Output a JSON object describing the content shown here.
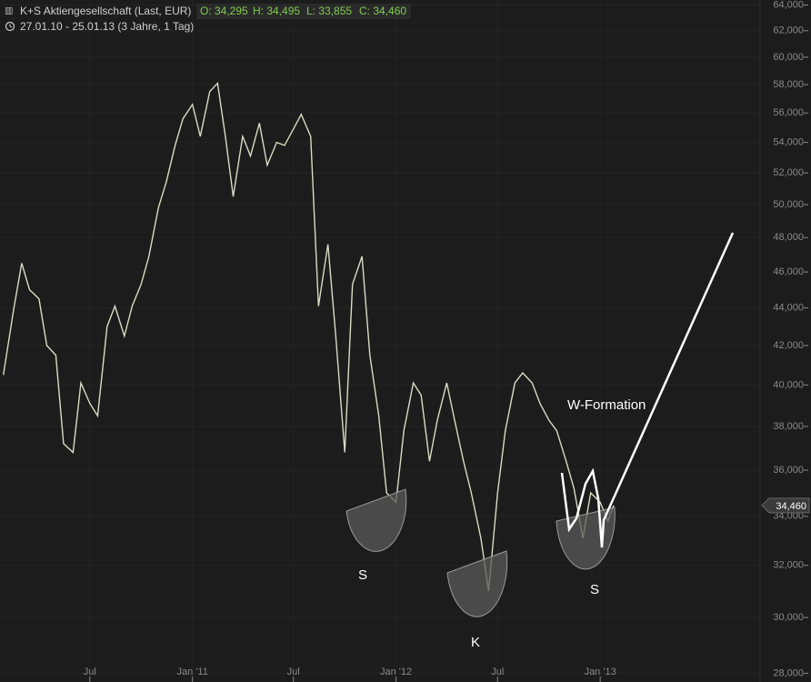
{
  "chart_data": {
    "type": "line",
    "title": "K+S Aktiengesellschaft (Last, EUR)",
    "ohlc": [
      "O: 34,295",
      "H: 34,495",
      "L: 33,855",
      "C: 34,460"
    ],
    "subtitle": "27.01.10 - 25.01.13 (3 Jahre, 1 Tag)",
    "annotations": [
      "W-Formation",
      "S",
      "K",
      "S"
    ],
    "last_price": {
      "value": 34460,
      "label": "34,460"
    },
    "color": "#d8dcc4",
    "log_scale": true,
    "grid": true,
    "xlim": [
      "2010-01-21",
      "2013-10-13"
    ],
    "ylim": [
      27700,
      64400
    ],
    "xticks": [
      {
        "value": "2010-07-01",
        "label": "Jul"
      },
      {
        "value": "2011-01-01",
        "label": "Jan '11"
      },
      {
        "value": "2011-07-01",
        "label": "Jul"
      },
      {
        "value": "2012-01-01",
        "label": "Jan '12"
      },
      {
        "value": "2012-07-01",
        "label": "Jul"
      },
      {
        "value": "2013-01-01",
        "label": "Jan '13"
      }
    ],
    "yticks": [
      {
        "value": 28000,
        "label": "28,000"
      },
      {
        "value": 30000,
        "label": "30,000"
      },
      {
        "value": 32000,
        "label": "32,000"
      },
      {
        "value": 34000,
        "label": "34,000"
      },
      {
        "value": 36000,
        "label": "36,000"
      },
      {
        "value": 38000,
        "label": "38,000"
      },
      {
        "value": 40000,
        "label": "40,000"
      },
      {
        "value": 42000,
        "label": "42,000"
      },
      {
        "value": 44000,
        "label": "44,000"
      },
      {
        "value": 46000,
        "label": "46,000"
      },
      {
        "value": 48000,
        "label": "48,000"
      },
      {
        "value": 50000,
        "label": "50,000"
      },
      {
        "value": 52000,
        "label": "52,000"
      },
      {
        "value": 54000,
        "label": "54,000"
      },
      {
        "value": 56000,
        "label": "56,000"
      },
      {
        "value": 58000,
        "label": "58,000"
      },
      {
        "value": 60000,
        "label": "60,000"
      },
      {
        "value": 62000,
        "label": "62,000"
      },
      {
        "value": 64000,
        "label": "64,000"
      }
    ],
    "x": [
      "2010-01-27",
      "2010-02-15",
      "2010-03-01",
      "2010-03-15",
      "2010-04-01",
      "2010-04-15",
      "2010-05-01",
      "2010-05-15",
      "2010-06-01",
      "2010-06-15",
      "2010-07-01",
      "2010-07-15",
      "2010-08-01",
      "2010-08-15",
      "2010-09-01",
      "2010-09-15",
      "2010-10-01",
      "2010-10-15",
      "2010-11-01",
      "2010-11-15",
      "2010-12-01",
      "2010-12-15",
      "2011-01-01",
      "2011-01-15",
      "2011-02-01",
      "2011-02-15",
      "2011-03-01",
      "2011-03-15",
      "2011-04-01",
      "2011-04-15",
      "2011-05-01",
      "2011-05-15",
      "2011-06-01",
      "2011-06-15",
      "2011-07-01",
      "2011-07-15",
      "2011-08-01",
      "2011-08-15",
      "2011-09-01",
      "2011-09-15",
      "2011-10-01",
      "2011-10-15",
      "2011-11-01",
      "2011-11-15",
      "2011-12-01",
      "2011-12-15",
      "2012-01-01",
      "2012-01-15",
      "2012-02-01",
      "2012-02-15",
      "2012-03-01",
      "2012-03-15",
      "2012-04-01",
      "2012-04-15",
      "2012-05-01",
      "2012-05-15",
      "2012-06-01",
      "2012-06-15",
      "2012-07-01",
      "2012-07-15",
      "2012-08-01",
      "2012-08-15",
      "2012-09-01",
      "2012-09-15",
      "2012-10-01",
      "2012-10-15",
      "2012-11-01",
      "2012-11-15",
      "2012-12-01",
      "2012-12-15",
      "2013-01-01",
      "2013-01-15",
      "2013-01-25"
    ],
    "values": [
      40500,
      44000,
      46500,
      45000,
      44500,
      42000,
      41500,
      37200,
      36800,
      40100,
      39100,
      38500,
      43000,
      44100,
      42500,
      44100,
      45300,
      46900,
      49800,
      51400,
      53800,
      55600,
      56600,
      54400,
      57500,
      58100,
      54400,
      50500,
      54400,
      53100,
      55300,
      52500,
      54000,
      53800,
      54900,
      55900,
      54400,
      44100,
      47600,
      42500,
      36800,
      45300,
      46900,
      41500,
      38500,
      35000,
      34600,
      37800,
      40100,
      39500,
      36400,
      38300,
      40100,
      38300,
      36400,
      35000,
      33100,
      31000,
      35000,
      37800,
      40100,
      40600,
      40100,
      39100,
      38300,
      37800,
      36400,
      35200,
      33100,
      35000,
      34600,
      33800,
      34460
    ]
  }
}
